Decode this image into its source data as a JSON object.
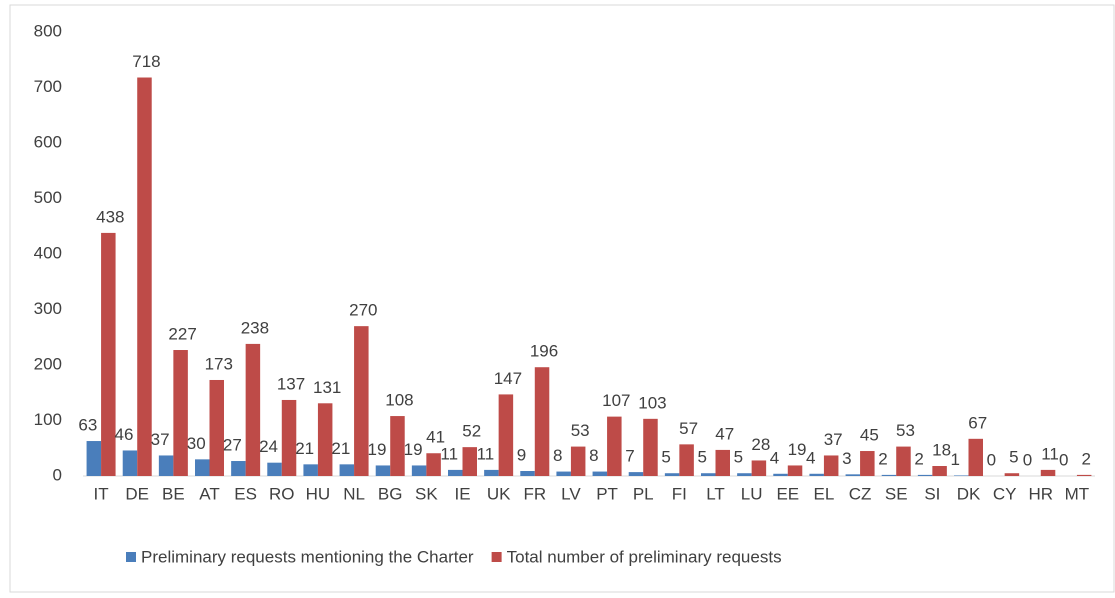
{
  "chart_data": {
    "type": "bar",
    "categories": [
      "IT",
      "DE",
      "BE",
      "AT",
      "ES",
      "RO",
      "HU",
      "NL",
      "BG",
      "SK",
      "IE",
      "UK",
      "FR",
      "LV",
      "PT",
      "PL",
      "FI",
      "LT",
      "LU",
      "EE",
      "EL",
      "CZ",
      "SE",
      "SI",
      "DK",
      "CY",
      "HR",
      "MT"
    ],
    "series": [
      {
        "name": "Preliminary requests mentioning the Charter",
        "color": "#4a7ebb",
        "values": [
          63,
          46,
          37,
          30,
          27,
          24,
          21,
          21,
          19,
          19,
          11,
          11,
          9,
          8,
          8,
          7,
          5,
          5,
          5,
          4,
          4,
          3,
          2,
          2,
          1,
          0,
          0,
          0
        ]
      },
      {
        "name": "Total number of preliminary requests",
        "color": "#be4b48",
        "values": [
          438,
          718,
          227,
          173,
          238,
          137,
          131,
          270,
          108,
          41,
          52,
          147,
          196,
          53,
          107,
          103,
          57,
          47,
          28,
          19,
          37,
          45,
          53,
          18,
          67,
          5,
          11,
          2
        ]
      }
    ],
    "ylim": [
      0,
      800
    ],
    "yticks": [
      0,
      100,
      200,
      300,
      400,
      500,
      600,
      700,
      800
    ],
    "grid": false,
    "legend": "bottom"
  }
}
